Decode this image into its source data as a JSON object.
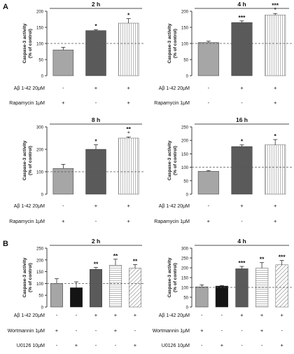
{
  "figure": {
    "panel_labels": [
      "A",
      "B"
    ],
    "ylabel_line1": "Caspase-3 activity",
    "ylabel_line2": "(% of control)",
    "row_labels": {
      "abeta": "Aβ 1-42 20μM",
      "rapamycin": "Rapamycin 1μM",
      "wortmannin": "Wortmannin 1μM",
      "u0126": "U0126 10μM"
    }
  },
  "chart_data": [
    {
      "type": "bar",
      "title": "2 h",
      "panel": "A",
      "ylim": [
        0,
        200
      ],
      "yticks": [
        0,
        50,
        100,
        150,
        200
      ],
      "reference_line": 100,
      "values": [
        80,
        140,
        163
      ],
      "errors": [
        8,
        3,
        14
      ],
      "significance": [
        "",
        "*",
        "*"
      ],
      "fills": [
        "#a6a6a6",
        "#5a5a5a",
        "vstripe"
      ],
      "condition_rows": [
        {
          "row": "abeta",
          "signs": [
            "-",
            "+",
            "+"
          ]
        },
        {
          "row": "rapamycin",
          "signs": [
            "+",
            "-",
            "+"
          ]
        }
      ]
    },
    {
      "type": "bar",
      "title": "4 h",
      "panel": "A",
      "ylim": [
        0,
        200
      ],
      "yticks": [
        0,
        50,
        100,
        150,
        200
      ],
      "reference_line": 100,
      "values": [
        103,
        165,
        188
      ],
      "errors": [
        4,
        5,
        5
      ],
      "significance": [
        "",
        "***",
        "***\n°"
      ],
      "fills": [
        "#a6a6a6",
        "#5a5a5a",
        "vstripe"
      ],
      "condition_rows": [
        {
          "row": "abeta",
          "signs": [
            "-",
            "+",
            "+"
          ]
        },
        {
          "row": "rapamycin",
          "signs": [
            "-",
            "-",
            "+"
          ]
        }
      ]
    },
    {
      "type": "bar",
      "title": "8 h",
      "panel": "A",
      "ylim": [
        0,
        300
      ],
      "yticks": [
        0,
        100,
        200,
        300
      ],
      "reference_line": 100,
      "values": [
        115,
        200,
        250
      ],
      "errors": [
        18,
        20,
        5
      ],
      "significance": [
        "",
        "*",
        "**\n°"
      ],
      "fills": [
        "#a6a6a6",
        "#5a5a5a",
        "vstripe"
      ],
      "condition_rows": [
        {
          "row": "abeta",
          "signs": [
            "-",
            "+",
            "+"
          ]
        },
        {
          "row": "rapamycin",
          "signs": [
            "+",
            "-",
            "+"
          ]
        }
      ]
    },
    {
      "type": "bar",
      "title": "16 h",
      "panel": "A",
      "ylim": [
        0,
        250
      ],
      "yticks": [
        0,
        50,
        100,
        150,
        200,
        250
      ],
      "reference_line": 100,
      "values": [
        85,
        177,
        183
      ],
      "errors": [
        3,
        6,
        20
      ],
      "significance": [
        "",
        "*",
        "*"
      ],
      "fills": [
        "#a6a6a6",
        "#5a5a5a",
        "vstripe"
      ],
      "condition_rows": [
        {
          "row": "abeta",
          "signs": [
            "-",
            "+",
            "+"
          ]
        },
        {
          "row": "rapamycin",
          "signs": [
            "+",
            "-",
            "+"
          ]
        }
      ]
    },
    {
      "type": "bar",
      "title": "2 h",
      "panel": "B",
      "ylim": [
        0,
        250
      ],
      "yticks": [
        0,
        50,
        100,
        150,
        200,
        250
      ],
      "reference_line": 100,
      "values": [
        100,
        82,
        160,
        178,
        165
      ],
      "errors": [
        20,
        25,
        8,
        25,
        15
      ],
      "significance": [
        "",
        "",
        "**",
        "**",
        "**"
      ],
      "fills": [
        "#a6a6a6",
        "#141414",
        "#5a5a5a",
        "hstripe",
        "diag"
      ],
      "condition_rows": [
        {
          "row": "abeta",
          "signs": [
            "-",
            "-",
            "+",
            "+",
            "+"
          ]
        },
        {
          "row": "wortmannin",
          "signs": [
            "+",
            "-",
            "-",
            "+",
            "-"
          ]
        },
        {
          "row": "u0126",
          "signs": [
            "-",
            "+",
            "-",
            "-",
            "+"
          ]
        }
      ]
    },
    {
      "type": "bar",
      "title": "4 h",
      "panel": "B",
      "ylim": [
        0,
        300
      ],
      "yticks": [
        0,
        50,
        100,
        150,
        200,
        250,
        300
      ],
      "reference_line": 100,
      "values": [
        103,
        107,
        195,
        198,
        215
      ],
      "errors": [
        10,
        3,
        12,
        28,
        22
      ],
      "significance": [
        "",
        "",
        "***",
        "**",
        "***"
      ],
      "fills": [
        "#a6a6a6",
        "#141414",
        "#5a5a5a",
        "hstripe",
        "diag"
      ],
      "condition_rows": [
        {
          "row": "abeta",
          "signs": [
            "-",
            "-",
            "+",
            "+",
            "+"
          ]
        },
        {
          "row": "wortmannin",
          "signs": [
            "+",
            "-",
            "-",
            "+",
            "-"
          ]
        },
        {
          "row": "u0126",
          "signs": [
            "-",
            "+",
            "-",
            "-",
            "+"
          ]
        }
      ]
    }
  ]
}
